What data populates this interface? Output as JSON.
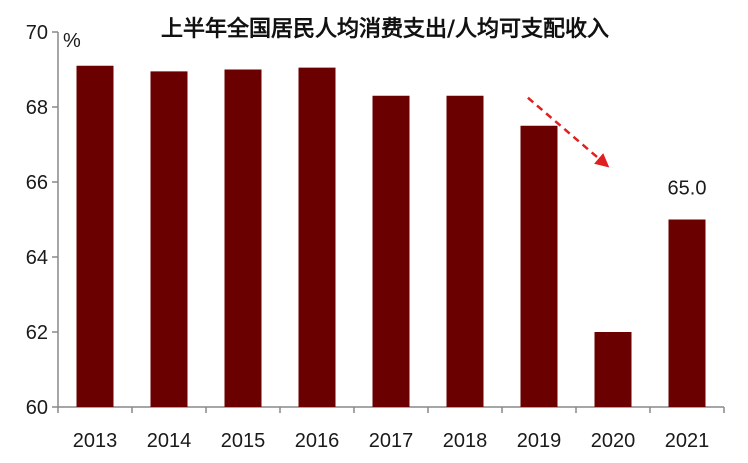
{
  "chart_data": {
    "type": "bar",
    "title": "上半年全国居民人均消费支出/人均可支配收入",
    "unit": "%",
    "categories": [
      "2013",
      "2014",
      "2015",
      "2016",
      "2017",
      "2018",
      "2019",
      "2020",
      "2021"
    ],
    "values": [
      69.1,
      68.95,
      69.0,
      69.05,
      68.3,
      68.3,
      67.5,
      62.0,
      65.0
    ],
    "ylim": [
      60,
      70
    ],
    "yticks": [
      "60",
      "62",
      "64",
      "66",
      "68",
      "70"
    ],
    "data_labels": [
      {
        "category": "2021",
        "text": "65.0"
      }
    ],
    "annotation": "dashed red arrow pointing down toward 2021",
    "bar_color": "#6b0000",
    "arrow_color": "#e02020",
    "grid": false
  }
}
